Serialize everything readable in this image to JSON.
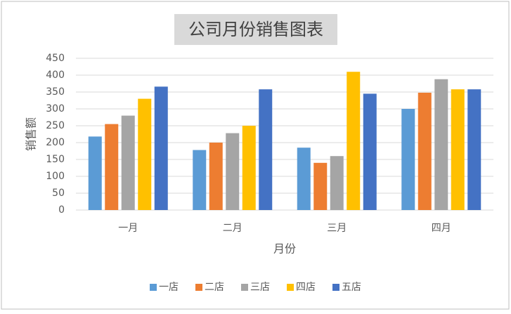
{
  "chart_data": {
    "type": "bar",
    "title": "公司月份销售图表",
    "x_label": "月份",
    "y_label": "销售额",
    "categories": [
      "一月",
      "二月",
      "三月",
      "四月"
    ],
    "series": [
      {
        "name": "一店",
        "color": "#5b9bd5",
        "values": [
          218,
          178,
          185,
          300
        ]
      },
      {
        "name": "二店",
        "color": "#ed7d31",
        "values": [
          255,
          200,
          140,
          348
        ]
      },
      {
        "name": "三店",
        "color": "#a5a5a5",
        "values": [
          280,
          228,
          160,
          388
        ]
      },
      {
        "name": "四店",
        "color": "#ffc000",
        "values": [
          330,
          250,
          410,
          358
        ]
      },
      {
        "name": "五店",
        "color": "#4472c4",
        "values": [
          366,
          358,
          345,
          358
        ]
      }
    ],
    "ylim": [
      0,
      450
    ],
    "yticks": [
      0,
      50,
      100,
      150,
      200,
      250,
      300,
      350,
      400,
      450
    ],
    "grid": true,
    "legend": "bottom"
  }
}
